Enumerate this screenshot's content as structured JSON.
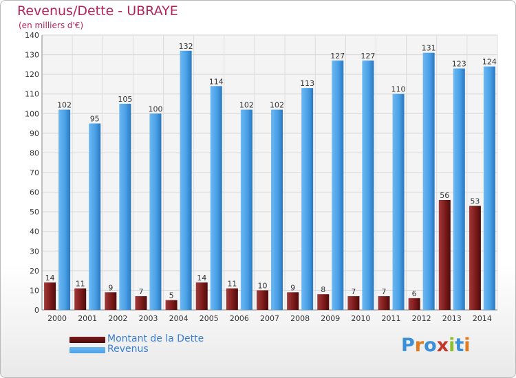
{
  "header": {
    "title": "Revenus/Dette - UBRAYE",
    "subtitle": "(en milliers d'€)"
  },
  "legend": {
    "items": [
      {
        "label": "Montant de la Dette",
        "color": "#7d1a1a"
      },
      {
        "label": "Revenus",
        "color": "#4aa0e6"
      }
    ]
  },
  "logo": {
    "text": "Proxiti"
  },
  "chart_data": {
    "type": "bar",
    "title": "Revenus/Dette - UBRAYE",
    "subtitle": "(en milliers d'€)",
    "categories": [
      "2000",
      "2001",
      "2002",
      "2003",
      "2004",
      "2005",
      "2006",
      "2007",
      "2008",
      "2009",
      "2010",
      "2011",
      "2012",
      "2013",
      "2014"
    ],
    "series": [
      {
        "name": "Montant de la Dette",
        "color": "#7d1a1a",
        "values": [
          14,
          11,
          9,
          7,
          5,
          14,
          11,
          10,
          9,
          8,
          7,
          7,
          6,
          56,
          53
        ]
      },
      {
        "name": "Revenus",
        "color": "#4aa0e6",
        "values": [
          102,
          95,
          105,
          100,
          132,
          114,
          102,
          102,
          113,
          127,
          127,
          110,
          131,
          123,
          124
        ]
      }
    ],
    "ylim": [
      0,
      140
    ],
    "yticks": [
      0,
      10,
      20,
      30,
      40,
      50,
      60,
      70,
      80,
      90,
      100,
      110,
      120,
      130,
      140
    ],
    "grid": true,
    "legend_position": "bottom-left"
  }
}
